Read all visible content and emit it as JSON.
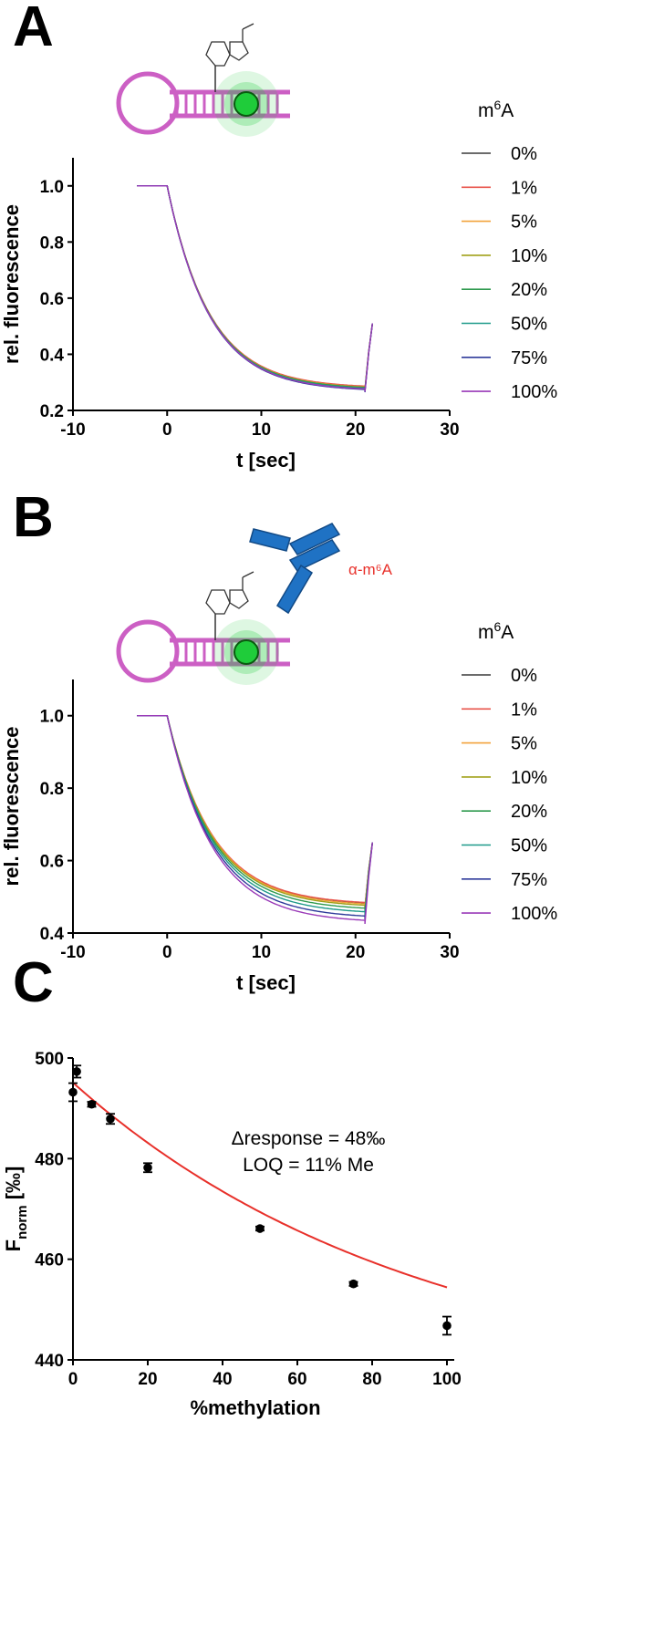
{
  "panels": {
    "A": {
      "label": "A"
    },
    "B": {
      "label": "B",
      "antibody_label": "α-m⁶A"
    },
    "C": {
      "label": "C"
    }
  },
  "colors": {
    "series": [
      "#3a3a3a",
      "#e8534a",
      "#f2a23a",
      "#a0a018",
      "#2e9a4e",
      "#1f9a8a",
      "#2e3a9a",
      "#9a3ab8"
    ],
    "rna": "#cc5fc4",
    "fluorophore": "#1fcc3a",
    "antibody": "#1f72c4",
    "fit_curve": "#e8302a"
  },
  "chart_data": [
    {
      "type": "line",
      "panel": "A",
      "xlabel": "t [sec]",
      "ylabel": "rel. fluorescence",
      "xlim": [
        -10,
        30
      ],
      "ylim": [
        0.2,
        1.1
      ],
      "xticks": [
        "-10",
        "0",
        "10",
        "20",
        "30"
      ],
      "yticks": [
        "0.2",
        "0.4",
        "0.6",
        "0.8",
        "1.0"
      ],
      "legend_title": "m6A",
      "legend_position": "right",
      "series": [
        {
          "name": "0%",
          "pre": 1.0,
          "plateau": 0.278,
          "tau": 4.5,
          "end": 0.51
        },
        {
          "name": "1%",
          "pre": 1.0,
          "plateau": 0.28,
          "tau": 4.5,
          "end": 0.51
        },
        {
          "name": "5%",
          "pre": 1.0,
          "plateau": 0.277,
          "tau": 4.5,
          "end": 0.51
        },
        {
          "name": "10%",
          "pre": 1.0,
          "plateau": 0.276,
          "tau": 4.5,
          "end": 0.51
        },
        {
          "name": "20%",
          "pre": 1.0,
          "plateau": 0.275,
          "tau": 4.5,
          "end": 0.51
        },
        {
          "name": "50%",
          "pre": 1.0,
          "plateau": 0.272,
          "tau": 4.5,
          "end": 0.51
        },
        {
          "name": "75%",
          "pre": 1.0,
          "plateau": 0.268,
          "tau": 4.5,
          "end": 0.51
        },
        {
          "name": "100%",
          "pre": 1.0,
          "plateau": 0.27,
          "tau": 4.5,
          "end": 0.51
        }
      ]
    },
    {
      "type": "line",
      "panel": "B",
      "xlabel": "t [sec]",
      "ylabel": "rel. fluorescence",
      "xlim": [
        -10,
        30
      ],
      "ylim": [
        0.4,
        1.1
      ],
      "xticks": [
        "-10",
        "0",
        "10",
        "20",
        "30"
      ],
      "yticks": [
        "0.4",
        "0.6",
        "0.8",
        "1.0"
      ],
      "legend_title": "m6A",
      "legend_position": "right",
      "series": [
        {
          "name": "0%",
          "pre": 1.0,
          "plateau": 0.475,
          "tau": 4.8,
          "end": 0.65
        },
        {
          "name": "1%",
          "pre": 1.0,
          "plateau": 0.478,
          "tau": 4.8,
          "end": 0.65
        },
        {
          "name": "5%",
          "pre": 1.0,
          "plateau": 0.474,
          "tau": 4.8,
          "end": 0.65
        },
        {
          "name": "10%",
          "pre": 1.0,
          "plateau": 0.47,
          "tau": 4.8,
          "end": 0.65
        },
        {
          "name": "20%",
          "pre": 1.0,
          "plateau": 0.462,
          "tau": 4.8,
          "end": 0.65
        },
        {
          "name": "50%",
          "pre": 1.0,
          "plateau": 0.452,
          "tau": 4.8,
          "end": 0.65
        },
        {
          "name": "75%",
          "pre": 1.0,
          "plateau": 0.44,
          "tau": 4.8,
          "end": 0.65
        },
        {
          "name": "100%",
          "pre": 1.0,
          "plateau": 0.428,
          "tau": 4.8,
          "end": 0.65
        }
      ]
    },
    {
      "type": "scatter",
      "panel": "C",
      "xlabel": "%methylation",
      "ylabel": "Fnorm [‰]",
      "xlim": [
        0,
        100
      ],
      "ylim": [
        440,
        500
      ],
      "xticks": [
        "0",
        "20",
        "40",
        "60",
        "80",
        "100"
      ],
      "yticks": [
        "440",
        "460",
        "480",
        "500"
      ],
      "annotations": [
        "Δresponse = 48‰",
        "LOQ = 11% Me"
      ],
      "points": [
        {
          "x": 0,
          "y": 493.2,
          "err": 1.8
        },
        {
          "x": 1,
          "y": 497.3,
          "err": 1.2
        },
        {
          "x": 5,
          "y": 490.8,
          "err": 0.5
        },
        {
          "x": 10,
          "y": 487.9,
          "err": 1.0
        },
        {
          "x": 20,
          "y": 478.2,
          "err": 0.9
        },
        {
          "x": 50,
          "y": 466.1,
          "err": 0.4
        },
        {
          "x": 75,
          "y": 455.1,
          "err": 0.4
        },
        {
          "x": 100,
          "y": 446.8,
          "err": 1.8
        }
      ],
      "fit": {
        "a": 61.6,
        "c": 433.5,
        "k": 0.0108
      }
    }
  ]
}
